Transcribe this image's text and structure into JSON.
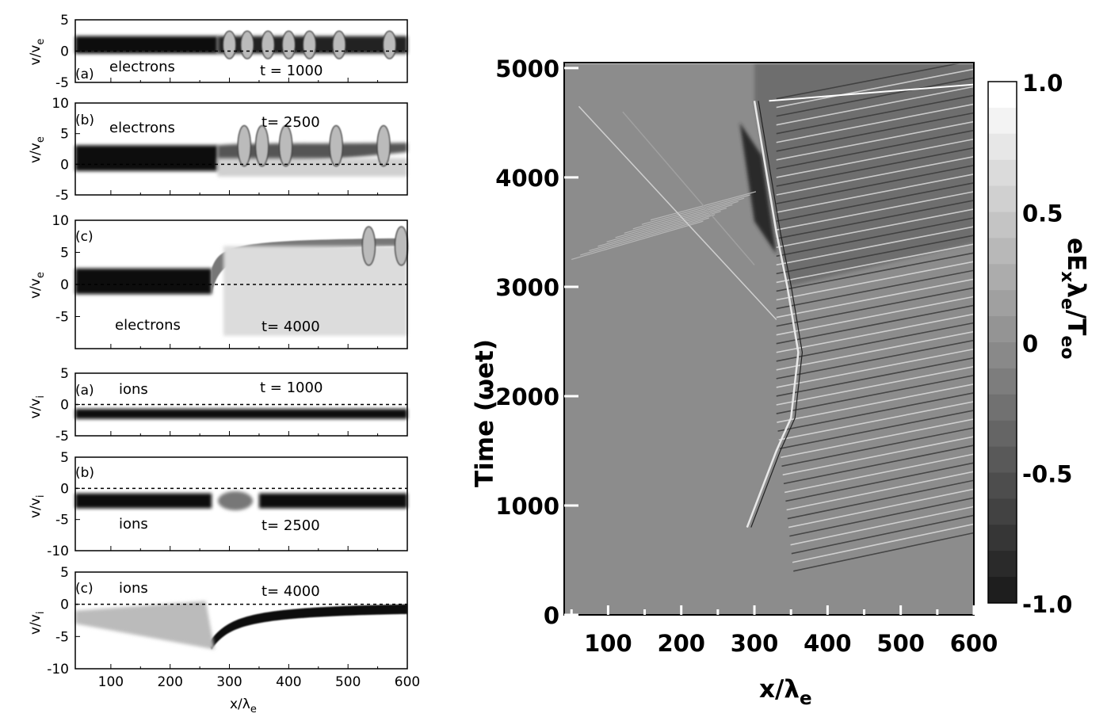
{
  "colors": {
    "background": "#ffffff",
    "dark": "#111111",
    "field": "#8c8c8c",
    "axis": "#000000"
  },
  "chart_data": [
    {
      "id": "e-a",
      "type": "heatmap",
      "panel_label": "(a)",
      "species": "electrons",
      "time_label": "t = 1000",
      "ylabel": "v/v",
      "ylabel_sub": "e",
      "ylim": [
        -5,
        5
      ],
      "yticks": [
        "5",
        "0",
        "-5"
      ],
      "xlim": [
        40,
        600
      ],
      "structure_start_x": 280,
      "bubbles_x": [
        300,
        330,
        365,
        400,
        435,
        485,
        570
      ],
      "beam_v": 1
    },
    {
      "id": "e-b",
      "type": "heatmap",
      "panel_label": "(b)",
      "species": "electrons",
      "time_label": "t= 2500",
      "ylabel": "v/v",
      "ylabel_sub": "e",
      "ylim": [
        -5,
        10
      ],
      "yticks": [
        "10",
        "5",
        "0",
        "-5"
      ],
      "xlim": [
        40,
        600
      ],
      "structure_start_x": 280,
      "bubbles_x": [
        325,
        355,
        395,
        480,
        560
      ],
      "beam_v": 1
    },
    {
      "id": "e-c",
      "type": "heatmap",
      "panel_label": "(c)",
      "species": "electrons",
      "time_label": "t= 4000",
      "ylabel": "v/v",
      "ylabel_sub": "e",
      "ylim": [
        -10,
        10
      ],
      "yticks": [
        "10",
        "5",
        "0",
        "-5"
      ],
      "xlim": [
        40,
        600
      ],
      "structure_start_x": 270,
      "bubbles_x": [
        535,
        590
      ],
      "beam_v": 0.5
    },
    {
      "id": "i-a",
      "type": "heatmap",
      "panel_label": "(a)",
      "species": "ions",
      "time_label": "t = 1000",
      "ylabel": "v/v",
      "ylabel_sub": "i",
      "ylim": [
        -5,
        5
      ],
      "yticks": [
        "5",
        "0",
        "-5"
      ],
      "xlim": [
        40,
        600
      ],
      "beam_v": -1.5
    },
    {
      "id": "i-b",
      "type": "heatmap",
      "panel_label": "(b)",
      "species": "ions",
      "time_label": "t= 2500",
      "ylabel": "v/v",
      "ylabel_sub": "i",
      "ylim": [
        -10,
        5
      ],
      "yticks": [
        "5",
        "0",
        "-5",
        "-10"
      ],
      "xlim": [
        40,
        600
      ],
      "beam_v": -2
    },
    {
      "id": "i-c",
      "type": "heatmap",
      "panel_label": "(c)",
      "species": "ions",
      "time_label": "t= 4000",
      "ylabel": "v/v",
      "ylabel_sub": "i",
      "ylim": [
        -10,
        5
      ],
      "yticks": [
        "5",
        "0",
        "-5",
        "-10"
      ],
      "xlim": [
        40,
        600
      ],
      "beam_v": -1.5,
      "xticks": [
        "100",
        "200",
        "300",
        "400",
        "500",
        "600"
      ],
      "xlabel": "x/λ",
      "xlabel_sub": "e"
    },
    {
      "id": "field",
      "type": "heatmap",
      "xlabel": "x/λ",
      "xlabel_sub": "e",
      "ylabel": "Time (ωet)",
      "xlim": [
        40,
        600
      ],
      "ylim": [
        0,
        5050
      ],
      "xticks": [
        "100",
        "200",
        "300",
        "400",
        "500",
        "600"
      ],
      "yticks": [
        "5000",
        "4000",
        "3000",
        "2000",
        "1000",
        "0"
      ],
      "front": [
        [
          290,
          800
        ],
        [
          330,
          1500
        ],
        [
          350,
          1800
        ],
        [
          360,
          2400
        ],
        [
          345,
          3000
        ],
        [
          330,
          3500
        ],
        [
          310,
          4300
        ],
        [
          300,
          4700
        ]
      ],
      "colorbar": {
        "label": "eE",
        "label_sub1": "x",
        "label_mid": "λ",
        "label_sub2": "e",
        "label_end": "/T",
        "label_sub3": "eo",
        "ticks": [
          "1.0",
          "0.5",
          "0",
          "-0.5",
          "-1.0"
        ],
        "range": [
          -1,
          1
        ],
        "levels": 20
      }
    }
  ]
}
